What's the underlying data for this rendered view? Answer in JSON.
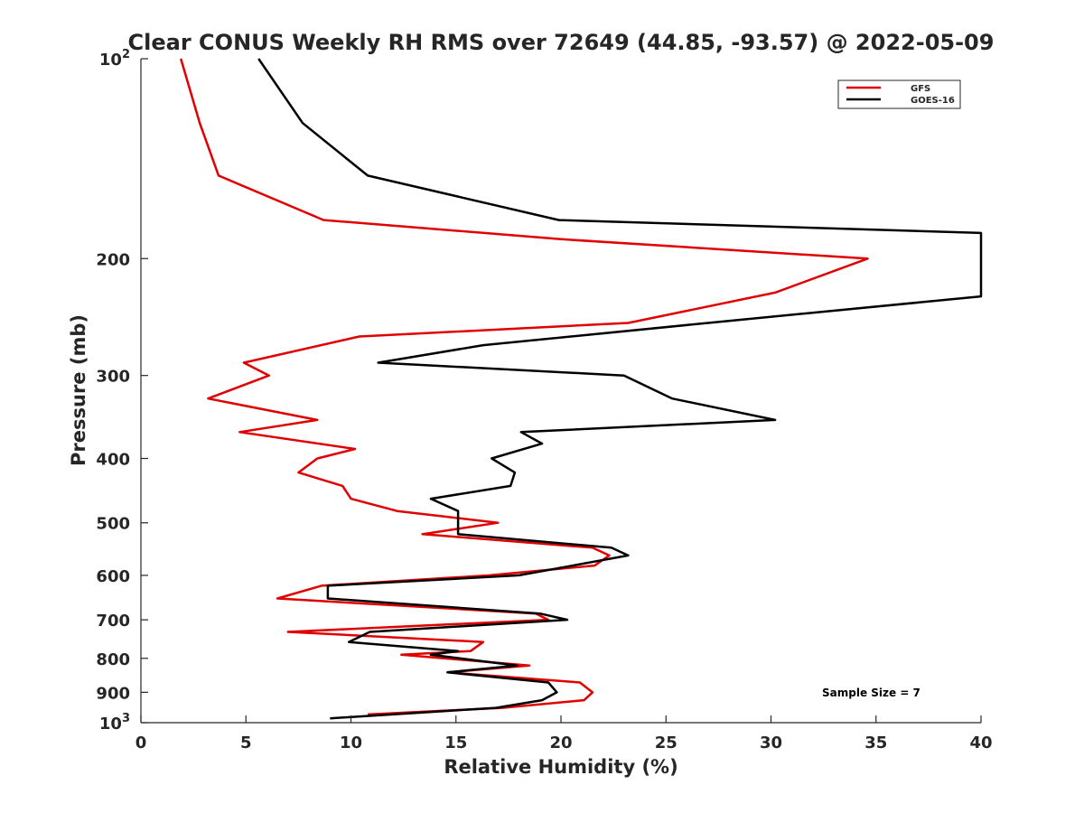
{
  "chart_data": {
    "type": "line",
    "title": "Clear CONUS Weekly RH RMS over 72649 (44.85, -93.57) @ 2022-05-09",
    "xlabel": "Relative Humidity (%)",
    "ylabel": "Pressure (mb)",
    "xlim": [
      0,
      40
    ],
    "ylim": [
      100,
      1000
    ],
    "yscale": "log",
    "y_reversed": true,
    "x_ticks": [
      "0",
      "5",
      "10",
      "15",
      "20",
      "25",
      "30",
      "35",
      "40"
    ],
    "y_ticks": [
      {
        "value": 100,
        "base": "10",
        "exp": "2"
      },
      {
        "value": 200,
        "label": "200"
      },
      {
        "value": 300,
        "label": "300"
      },
      {
        "value": 400,
        "label": "400"
      },
      {
        "value": 500,
        "label": "500"
      },
      {
        "value": 600,
        "label": "600"
      },
      {
        "value": 700,
        "label": "700"
      },
      {
        "value": 800,
        "label": "800"
      },
      {
        "value": 900,
        "label": "900"
      },
      {
        "value": 1000,
        "base": "10",
        "exp": "3"
      }
    ],
    "grid": false,
    "legend_position": "top-right",
    "series": [
      {
        "name": "GFS",
        "color": "#e00000",
        "points": [
          [
            1.9,
            100
          ],
          [
            2.8,
            125
          ],
          [
            3.7,
            150
          ],
          [
            8.7,
            175
          ],
          [
            20,
            187
          ],
          [
            34.6,
            200
          ],
          [
            30.2,
            225
          ],
          [
            23.2,
            250
          ],
          [
            10.4,
            262
          ],
          [
            4.9,
            287
          ],
          [
            6.1,
            300
          ],
          [
            3.2,
            325
          ],
          [
            8.4,
            350
          ],
          [
            4.7,
            365
          ],
          [
            10.2,
            387
          ],
          [
            8.4,
            400
          ],
          [
            7.5,
            420
          ],
          [
            9.6,
            440
          ],
          [
            10,
            460
          ],
          [
            12.2,
            480
          ],
          [
            17,
            500
          ],
          [
            13.4,
            520
          ],
          [
            21.5,
            545
          ],
          [
            22.3,
            560
          ],
          [
            21.6,
            580
          ],
          [
            16.6,
            600
          ],
          [
            8.6,
            622
          ],
          [
            6.5,
            650
          ],
          [
            18.8,
            685
          ],
          [
            19.4,
            700
          ],
          [
            7,
            730
          ],
          [
            16.3,
            756
          ],
          [
            15.7,
            780
          ],
          [
            12.4,
            790
          ],
          [
            18.5,
            820
          ],
          [
            14.6,
            840
          ],
          [
            20.9,
            870
          ],
          [
            21.5,
            900
          ],
          [
            21.1,
            925
          ],
          [
            17.2,
            950
          ],
          [
            10.8,
            972
          ]
        ]
      },
      {
        "name": "GOES-16",
        "color": "#000000",
        "points": [
          [
            5.6,
            100
          ],
          [
            7.7,
            125
          ],
          [
            10.8,
            150
          ],
          [
            19.9,
            175
          ],
          [
            40,
            183
          ],
          [
            40,
            228
          ],
          [
            27,
            250
          ],
          [
            16.3,
            270
          ],
          [
            11.3,
            287
          ],
          [
            23,
            300
          ],
          [
            25.3,
            325
          ],
          [
            30.2,
            350
          ],
          [
            18.1,
            365
          ],
          [
            19.1,
            380
          ],
          [
            16.7,
            400
          ],
          [
            17.8,
            420
          ],
          [
            17.6,
            440
          ],
          [
            13.8,
            460
          ],
          [
            15.1,
            480
          ],
          [
            15.1,
            500
          ],
          [
            15.1,
            520
          ],
          [
            22.4,
            545
          ],
          [
            23.2,
            560
          ],
          [
            18,
            600
          ],
          [
            8.9,
            622
          ],
          [
            8.9,
            650
          ],
          [
            19,
            685
          ],
          [
            20.3,
            700
          ],
          [
            10.9,
            730
          ],
          [
            9.9,
            756
          ],
          [
            15.1,
            780
          ],
          [
            13.8,
            790
          ],
          [
            17.9,
            820
          ],
          [
            14.6,
            840
          ],
          [
            19.4,
            870
          ],
          [
            19.8,
            900
          ],
          [
            19.1,
            925
          ],
          [
            16.9,
            950
          ],
          [
            9,
            985
          ]
        ]
      }
    ],
    "annotations": [
      "Sample Size = 7"
    ]
  }
}
